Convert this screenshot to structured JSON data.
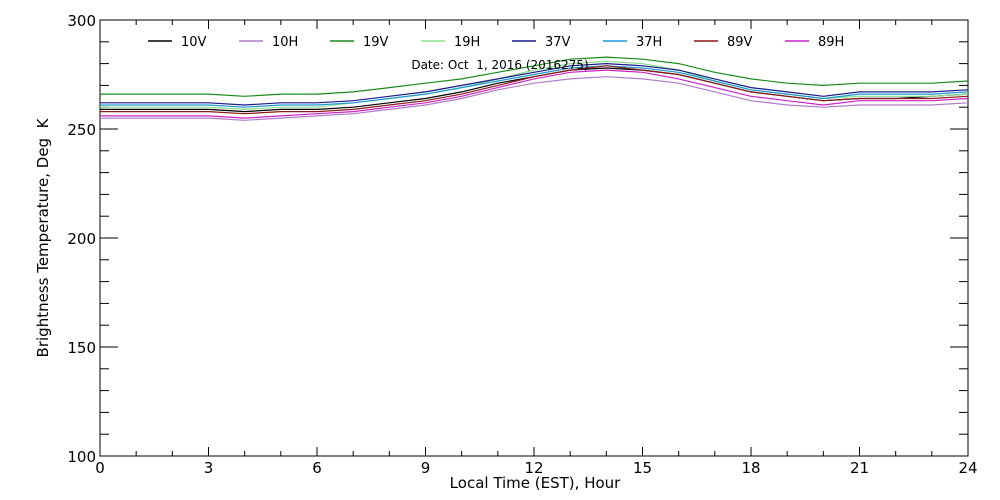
{
  "chart_data": {
    "type": "line",
    "title": "",
    "annotation": "Date: Oct  1, 2016 (2016275)",
    "xlabel": "Local Time (EST), Hour",
    "ylabel": "Brightness Temperature, Deg  K",
    "xlim": [
      0,
      24
    ],
    "ylim": [
      100,
      300
    ],
    "xticks": [
      0,
      3,
      6,
      9,
      12,
      15,
      18,
      21,
      24
    ],
    "yticks": [
      100,
      150,
      200,
      250,
      300
    ],
    "x_minor_step": 1,
    "y_minor_step": 10,
    "grid": false,
    "legend_position": "top",
    "x": [
      0,
      1,
      2,
      3,
      4,
      5,
      6,
      7,
      8,
      9,
      10,
      11,
      12,
      13,
      14,
      15,
      16,
      17,
      18,
      19,
      20,
      21,
      22,
      23,
      24
    ],
    "series": [
      {
        "name": "10V",
        "color": "#000000",
        "values": [
          259,
          259,
          259,
          259,
          258,
          259,
          259,
          260,
          262,
          264,
          267,
          271,
          274,
          277,
          278,
          277,
          275,
          271,
          267,
          265,
          263,
          264,
          264,
          265,
          266
        ]
      },
      {
        "name": "10H",
        "color": "#b07cc9",
        "values": [
          255,
          255,
          255,
          255,
          254,
          255,
          256,
          257,
          259,
          261,
          264,
          268,
          271,
          273,
          274,
          273,
          271,
          267,
          263,
          261,
          260,
          261,
          261,
          261,
          262
        ]
      },
      {
        "name": "19V",
        "color": "#1a8c1a",
        "values": [
          266,
          266,
          266,
          266,
          265,
          266,
          266,
          267,
          269,
          271,
          273,
          276,
          279,
          282,
          283,
          282,
          280,
          276,
          273,
          271,
          270,
          271,
          271,
          271,
          272
        ]
      },
      {
        "name": "19H",
        "color": "#8ee08e",
        "values": [
          260,
          260,
          260,
          260,
          259,
          260,
          260,
          262,
          264,
          266,
          269,
          273,
          277,
          280,
          281,
          280,
          277,
          272,
          268,
          266,
          264,
          265,
          265,
          265,
          266
        ]
      },
      {
        "name": "37V",
        "color": "#1a1a8c",
        "values": [
          262,
          262,
          262,
          262,
          261,
          262,
          262,
          263,
          265,
          267,
          270,
          273,
          276,
          279,
          280,
          279,
          277,
          273,
          269,
          267,
          265,
          267,
          267,
          267,
          268
        ]
      },
      {
        "name": "37H",
        "color": "#1c9ad6",
        "values": [
          261,
          261,
          261,
          261,
          260,
          261,
          261,
          262,
          264,
          266,
          269,
          272,
          275,
          278,
          279,
          278,
          276,
          272,
          268,
          266,
          264,
          266,
          266,
          266,
          267
        ]
      },
      {
        "name": "89V",
        "color": "#8c1a1a",
        "values": [
          258,
          258,
          258,
          258,
          257,
          258,
          258,
          259,
          261,
          263,
          266,
          270,
          274,
          277,
          279,
          277,
          275,
          271,
          267,
          265,
          263,
          264,
          264,
          264,
          265
        ]
      },
      {
        "name": "89H",
        "color": "#cc22cc",
        "values": [
          256,
          256,
          256,
          256,
          255,
          256,
          257,
          258,
          260,
          262,
          265,
          269,
          273,
          276,
          277,
          276,
          273,
          269,
          265,
          263,
          261,
          263,
          263,
          263,
          264
        ]
      }
    ]
  }
}
